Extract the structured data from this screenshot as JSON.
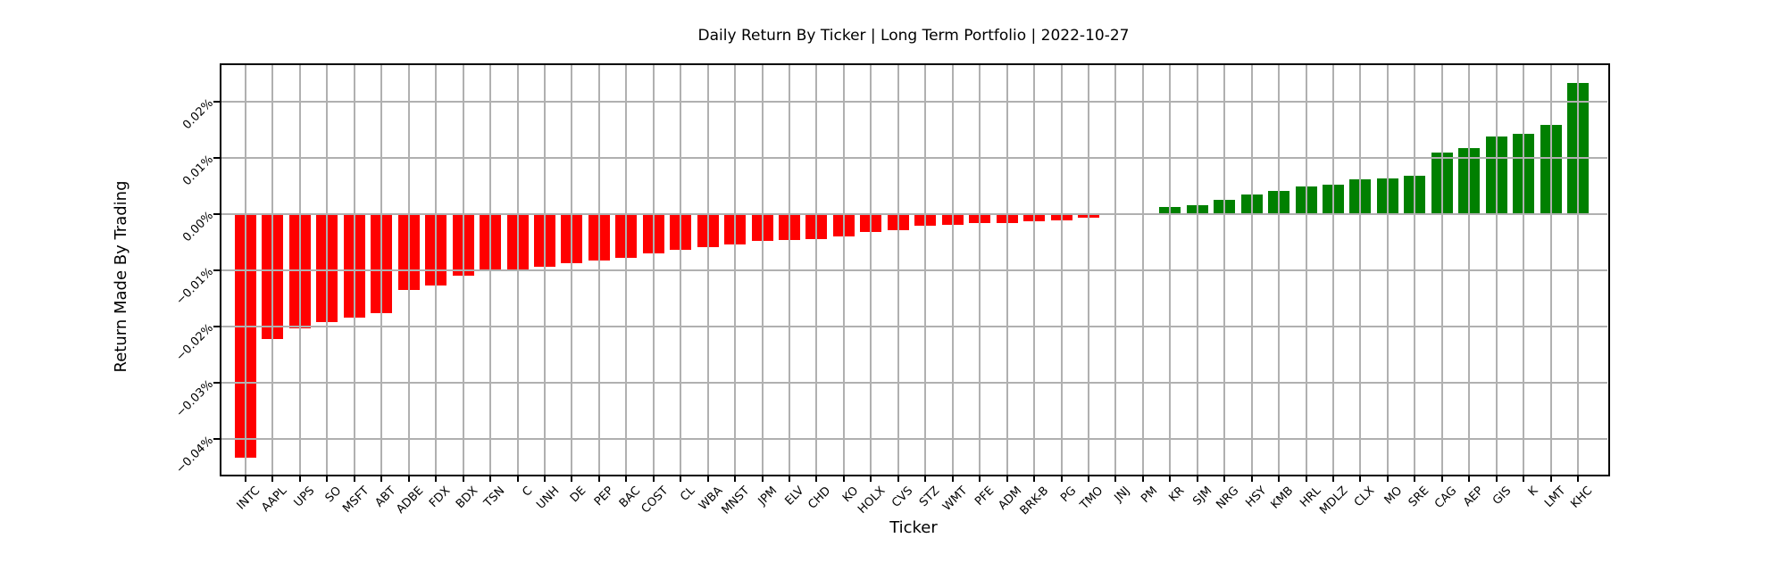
{
  "title": "Daily Return By Ticker | Long Term Portfolio | 2022-10-27",
  "chart_data": {
    "type": "bar",
    "title": "Daily Return By Ticker | Long Term Portfolio | 2022-10-27",
    "xlabel": "Ticker",
    "ylabel": "Return Made By Trading",
    "legend": "none",
    "grid": true,
    "categories": [
      "INTC",
      "AAPL",
      "UPS",
      "SO",
      "MSFT",
      "ABT",
      "ADBE",
      "FDX",
      "BDX",
      "TSN",
      "C",
      "UNH",
      "DE",
      "PEP",
      "BAC",
      "COST",
      "CL",
      "WBA",
      "MNST",
      "JPM",
      "ELV",
      "CHD",
      "KO",
      "HOLX",
      "CVS",
      "STZ",
      "WMT",
      "PFE",
      "ADM",
      "BRK-B",
      "PG",
      "TMO",
      "JNJ",
      "PM",
      "KR",
      "SJM",
      "NRG",
      "HSY",
      "KMB",
      "HRL",
      "MDLZ",
      "CLX",
      "MO",
      "SRE",
      "CAG",
      "AEP",
      "GIS",
      "K",
      "LMT",
      "KHC"
    ],
    "values": [
      -0.0434,
      -0.0222,
      -0.0203,
      -0.0192,
      -0.0184,
      -0.0176,
      -0.0134,
      -0.0127,
      -0.011,
      -0.0102,
      -0.0099,
      -0.0093,
      -0.0087,
      -0.0082,
      -0.0078,
      -0.0069,
      -0.0063,
      -0.0058,
      -0.0054,
      -0.0048,
      -0.0045,
      -0.0044,
      -0.0039,
      -0.0031,
      -0.0029,
      -0.0021,
      -0.0019,
      -0.0016,
      -0.0015,
      -0.0013,
      -0.001,
      -0.0006,
      0.0,
      0.0002,
      0.0013,
      0.0016,
      0.0026,
      0.0035,
      0.0041,
      0.0049,
      0.0053,
      0.0062,
      0.0064,
      0.0068,
      0.011,
      0.0118,
      0.0138,
      0.0144,
      0.016,
      0.0234
    ],
    "value_unit": "%",
    "ylim": [
      -0.0464,
      0.0266
    ],
    "yticks": [
      {
        "value": 0.02,
        "label": "0.02%"
      },
      {
        "value": 0.01,
        "label": "0.01%"
      },
      {
        "value": 0.0,
        "label": "0.00%"
      },
      {
        "value": -0.01,
        "label": "−0.01%"
      },
      {
        "value": -0.02,
        "label": "−0.02%"
      },
      {
        "value": -0.03,
        "label": "−0.03%"
      },
      {
        "value": -0.04,
        "label": "−0.04%"
      }
    ],
    "colors": {
      "positive": "#008000",
      "negative": "#ff0000",
      "grid": "#b0b0b0",
      "spine": "#000000",
      "background": "#ffffff"
    }
  }
}
